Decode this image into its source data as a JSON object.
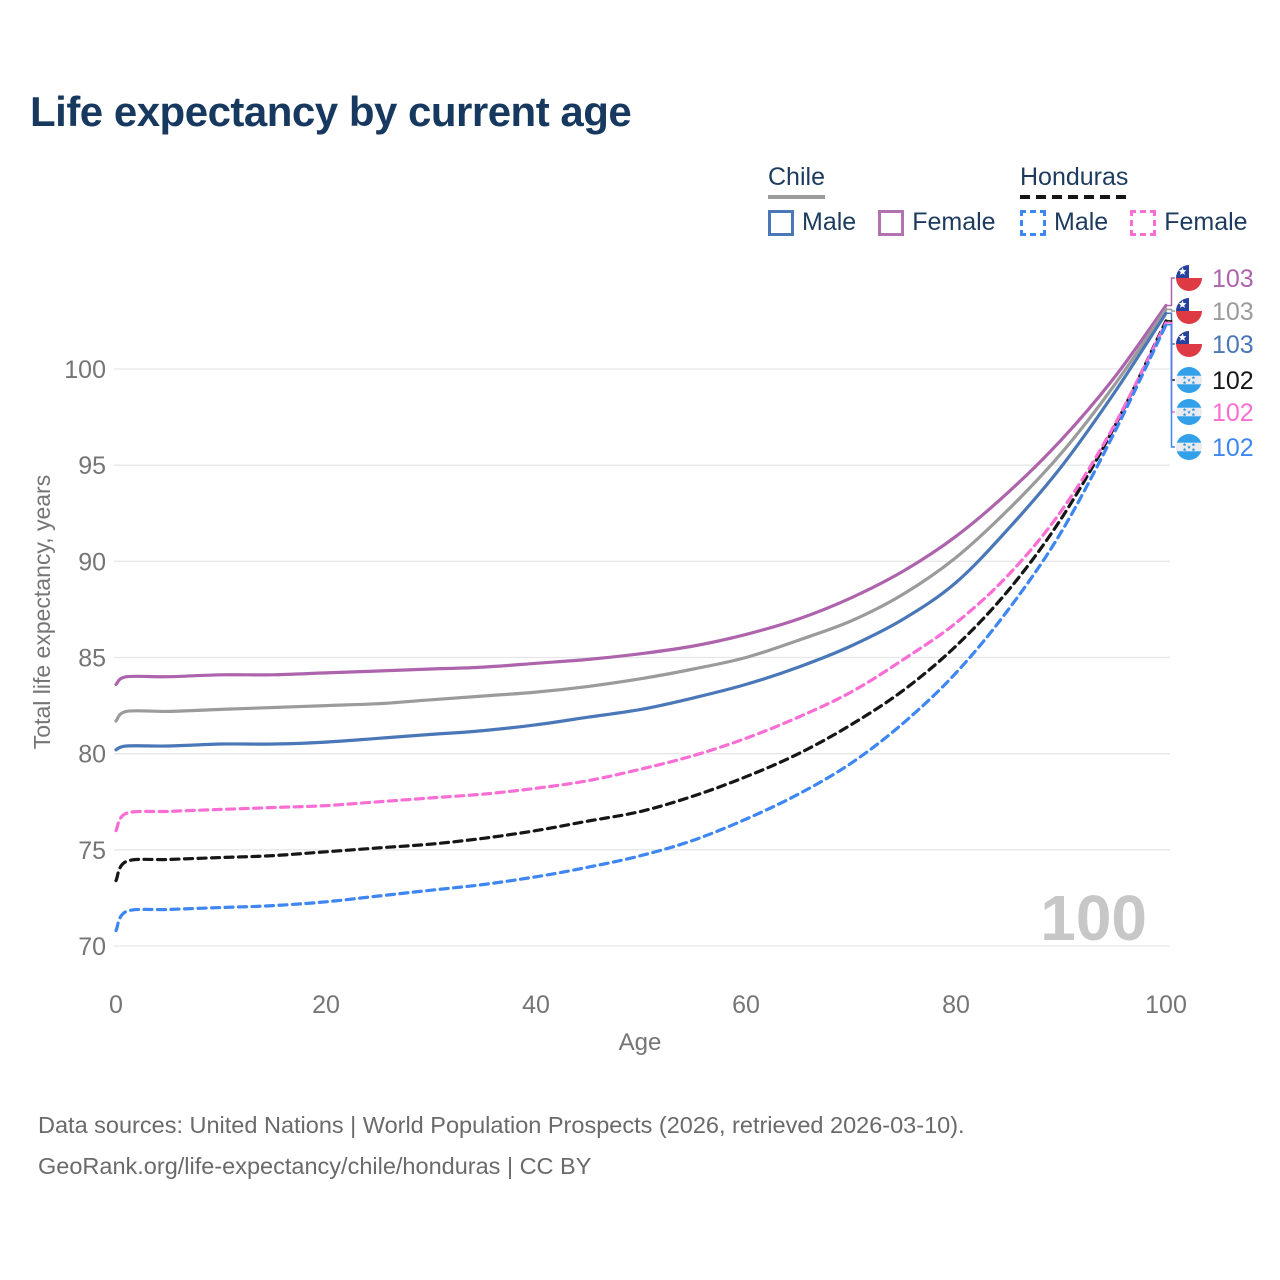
{
  "title": "Life expectancy by current age",
  "legend": {
    "groups": [
      {
        "label": "Chile",
        "line_style": "solid",
        "underline_color": "#9b9b9b",
        "items": [
          {
            "label": "Male",
            "color": "#4a77b8"
          },
          {
            "label": "Female",
            "color": "#b173af"
          }
        ]
      },
      {
        "label": "Honduras",
        "line_style": "dashed",
        "underline_color": "#161616",
        "items": [
          {
            "label": "Male",
            "color": "#3e86f2"
          },
          {
            "label": "Female",
            "color": "#f96ed5"
          }
        ]
      }
    ]
  },
  "watermark": "100",
  "footer": {
    "line1": "Data sources: United Nations | World Population Prospects (2026, retrieved 2026-03-10).",
    "line2": "GeoRank.org/life-expectancy/chile/honduras | CC BY"
  },
  "chart_data": {
    "type": "line",
    "title": "Life expectancy by current age",
    "xlabel": "Age",
    "ylabel": "Total life expectancy, years",
    "x_ticks": [
      0,
      20,
      40,
      60,
      80,
      100
    ],
    "y_ticks": [
      70,
      75,
      80,
      85,
      90,
      95,
      100
    ],
    "xlim": [
      0,
      100
    ],
    "ylim": [
      70,
      100
    ],
    "grid": "horizontal",
    "legend_position": "top-right",
    "x": [
      0,
      1,
      5,
      10,
      15,
      20,
      25,
      30,
      35,
      40,
      45,
      50,
      55,
      60,
      65,
      70,
      75,
      80,
      85,
      90,
      95,
      100
    ],
    "series": [
      {
        "name": "Chile Female",
        "country": "Chile",
        "sex": "Female",
        "color": "#ad64ad",
        "dash": "solid",
        "values": [
          83.6,
          84.0,
          84.0,
          84.1,
          84.1,
          84.2,
          84.3,
          84.4,
          84.5,
          84.7,
          84.9,
          85.2,
          85.6,
          86.2,
          87.0,
          88.1,
          89.5,
          91.3,
          93.6,
          96.3,
          99.5,
          103.3
        ],
        "end_label": "103"
      },
      {
        "name": "Chile Both sexes",
        "country": "Chile",
        "sex": "Both",
        "color": "#9b9b9b",
        "dash": "solid",
        "values": [
          81.7,
          82.2,
          82.2,
          82.3,
          82.4,
          82.5,
          82.6,
          82.8,
          83.0,
          83.2,
          83.5,
          83.9,
          84.4,
          85.0,
          85.9,
          86.9,
          88.3,
          90.2,
          92.7,
          95.6,
          99.1,
          103.1
        ],
        "end_label": "103"
      },
      {
        "name": "Chile Male",
        "country": "Chile",
        "sex": "Male",
        "color": "#4a77b8",
        "dash": "solid",
        "values": [
          80.2,
          80.4,
          80.4,
          80.5,
          80.5,
          80.6,
          80.8,
          81.0,
          81.2,
          81.5,
          81.9,
          82.3,
          82.9,
          83.6,
          84.5,
          85.6,
          87.0,
          88.9,
          91.7,
          94.9,
          98.7,
          102.9
        ],
        "end_label": "103"
      },
      {
        "name": "Honduras Both sexes",
        "country": "Honduras",
        "sex": "Both",
        "color": "#161616",
        "dash": "dashed",
        "values": [
          73.4,
          74.4,
          74.5,
          74.6,
          74.7,
          74.9,
          75.1,
          75.3,
          75.6,
          76.0,
          76.5,
          77.0,
          77.8,
          78.8,
          80.0,
          81.5,
          83.3,
          85.6,
          88.5,
          92.2,
          96.9,
          102.5
        ],
        "end_label": "102"
      },
      {
        "name": "Honduras Female",
        "country": "Honduras",
        "sex": "Female",
        "color": "#f96ed5",
        "dash": "dashed",
        "values": [
          76.0,
          76.9,
          77.0,
          77.1,
          77.2,
          77.3,
          77.5,
          77.7,
          77.9,
          78.2,
          78.6,
          79.2,
          79.9,
          80.8,
          81.9,
          83.2,
          84.9,
          86.8,
          89.3,
          92.6,
          97.0,
          102.4
        ],
        "end_label": "102"
      },
      {
        "name": "Honduras Male",
        "country": "Honduras",
        "sex": "Male",
        "color": "#3e86f2",
        "dash": "dashed",
        "values": [
          70.8,
          71.8,
          71.9,
          72.0,
          72.1,
          72.3,
          72.6,
          72.9,
          73.2,
          73.6,
          74.1,
          74.7,
          75.5,
          76.6,
          77.9,
          79.5,
          81.6,
          84.2,
          87.5,
          91.5,
          96.6,
          102.3
        ],
        "end_label": "102"
      }
    ]
  }
}
